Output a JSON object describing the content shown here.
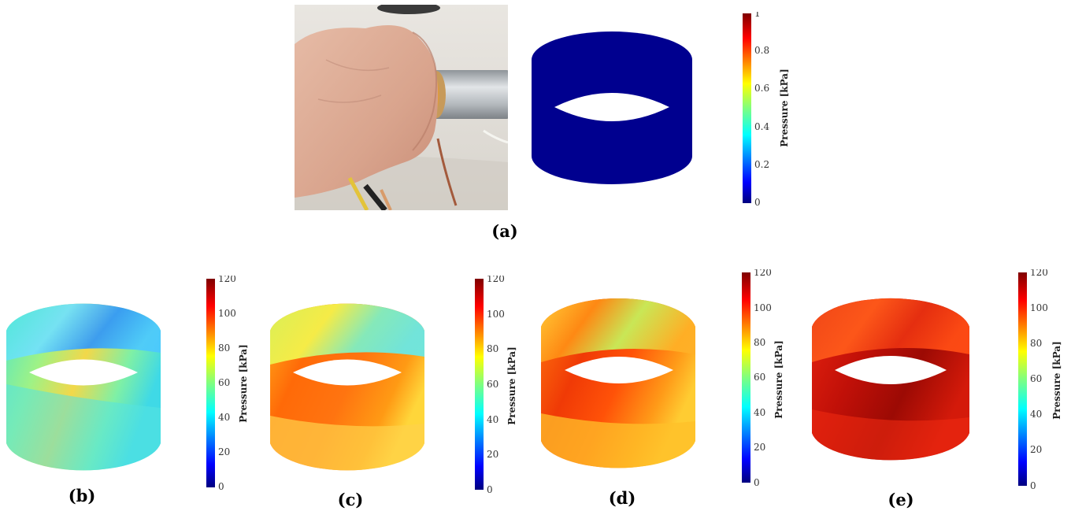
{
  "figure": {
    "panels": {
      "a": {
        "label": "(a)",
        "colorbar": {
          "label": "Pressure [kPa]",
          "ticks": [
            "0",
            "0.2",
            "0.4",
            "0.6",
            "0.8",
            "1"
          ]
        }
      },
      "b": {
        "label": "(b)",
        "colorbar": {
          "label": "Pressure [kPa]",
          "ticks": [
            "0",
            "20",
            "40",
            "60",
            "80",
            "100",
            "120"
          ]
        }
      },
      "c": {
        "label": "(c)",
        "colorbar": {
          "label": "Pressure [kPa]",
          "ticks": [
            "0",
            "20",
            "40",
            "60",
            "80",
            "100",
            "120"
          ]
        }
      },
      "d": {
        "label": "(d)",
        "colorbar": {
          "label": "Pressure [kPa]",
          "ticks": [
            "0",
            "20",
            "40",
            "60",
            "80",
            "100",
            "120"
          ]
        }
      },
      "e": {
        "label": "(e)",
        "colorbar": {
          "label": "Pressure [kPa]",
          "ticks": [
            "0",
            "20",
            "40",
            "60",
            "80",
            "100",
            "120"
          ]
        }
      }
    },
    "colormap": [
      "#00007f",
      "#0000ff",
      "#007fff",
      "#00ffff",
      "#7fff7f",
      "#ffff00",
      "#ff7f00",
      "#ff0000",
      "#7f0000"
    ]
  }
}
